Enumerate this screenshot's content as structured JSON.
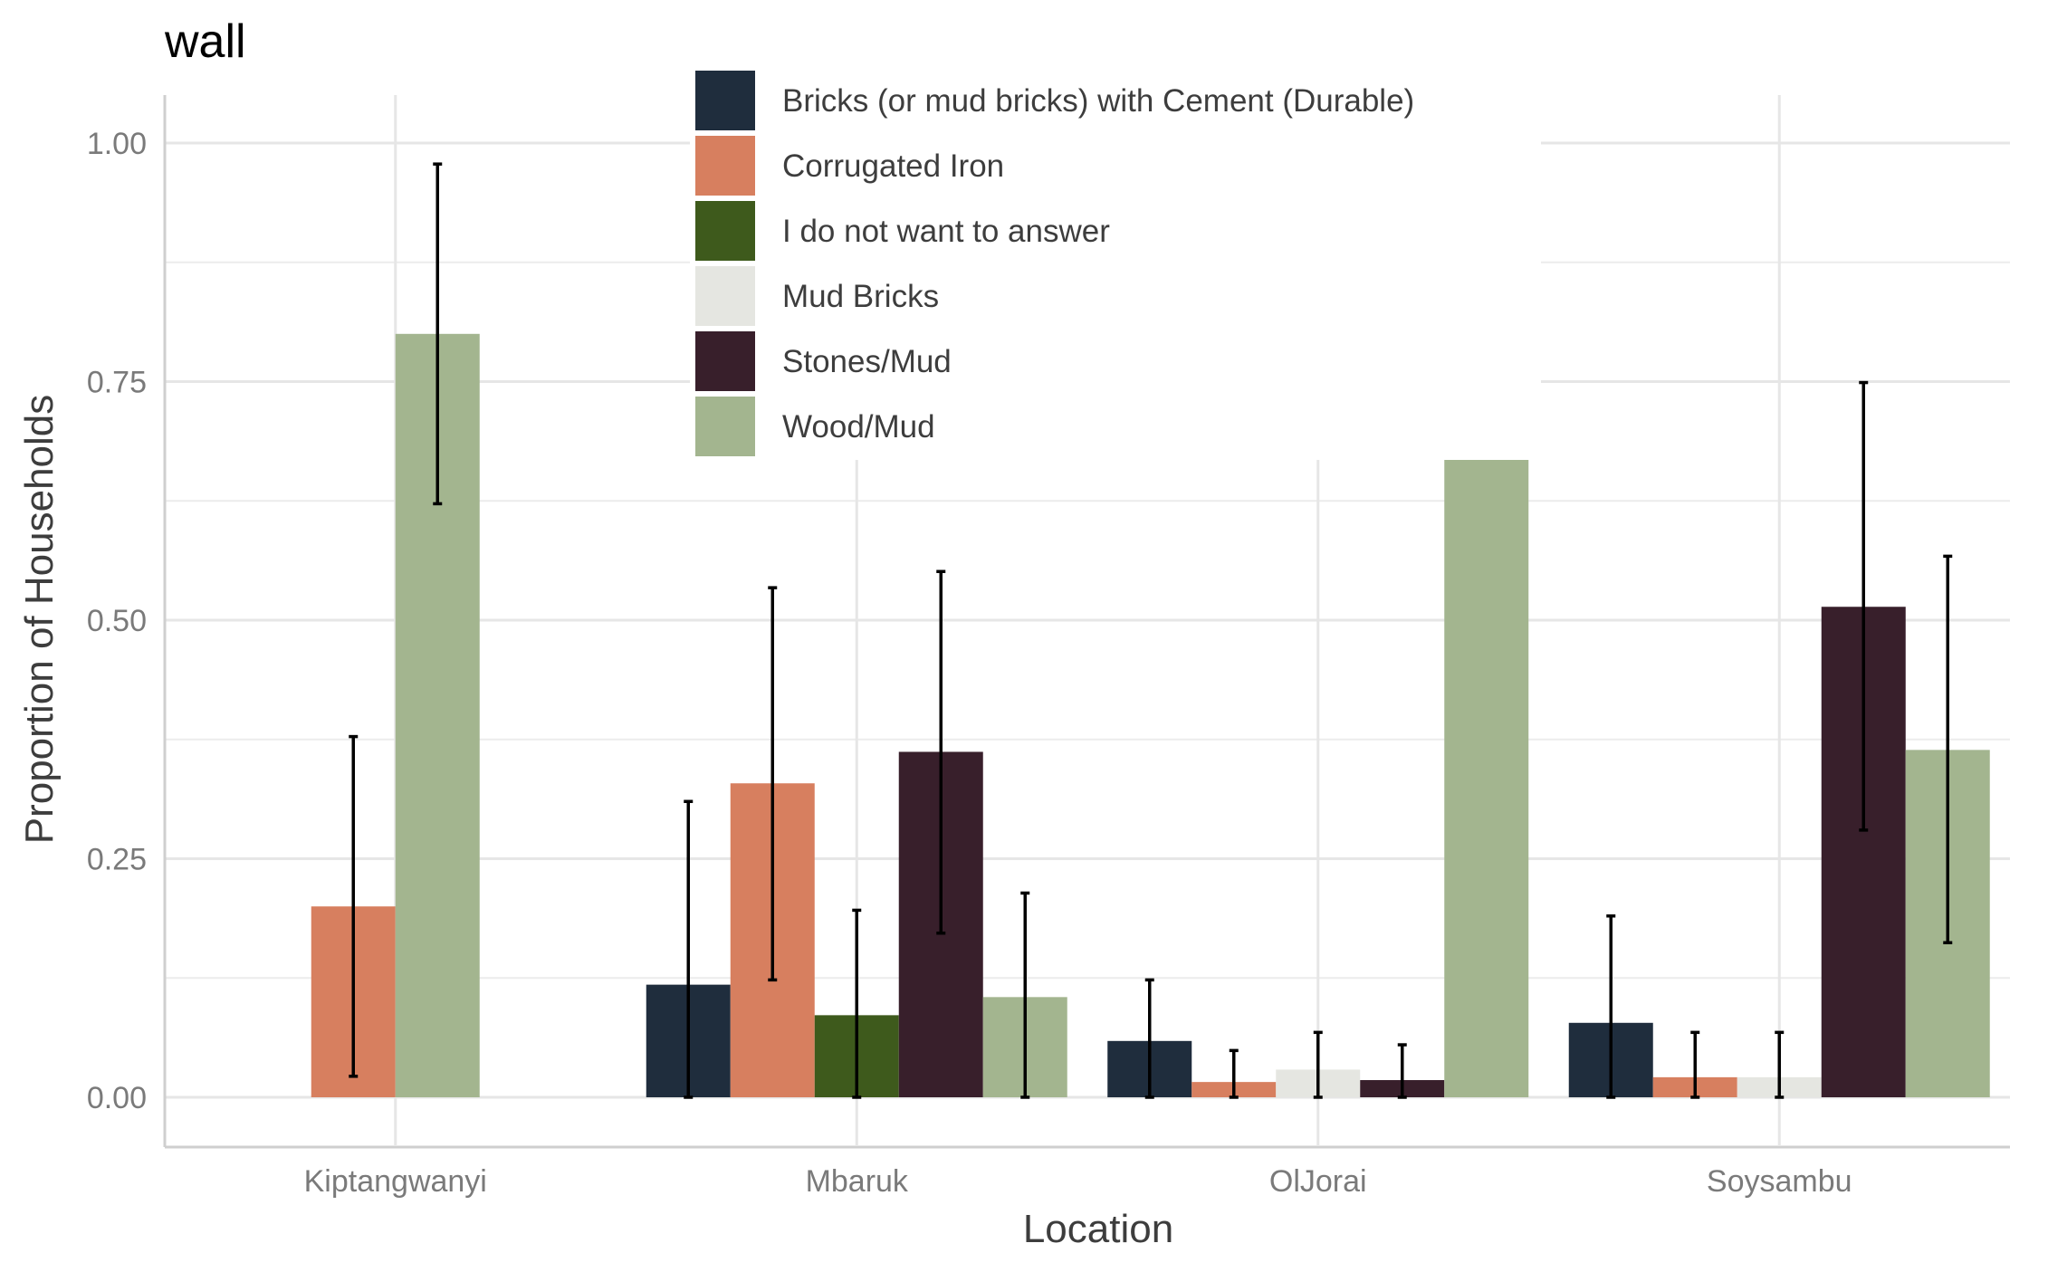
{
  "chart_data": {
    "type": "bar",
    "title": "wall",
    "xlabel": "Location",
    "ylabel": "Proportion of Households",
    "ylim": [
      -0.05,
      1.05
    ],
    "yticks": [
      "0.00",
      "0.25",
      "0.50",
      "0.75",
      "1.00"
    ],
    "categories": [
      "Kiptangwanyi",
      "Mbaruk",
      "OlJorai",
      "Soysambu"
    ],
    "legend_position": "top-center",
    "grid": true,
    "error_bars": true,
    "series": [
      {
        "name": "Bricks (or mud bricks) with Cement (Durable)",
        "color": "#1f2d3d",
        "values": [
          null,
          0.118,
          0.059,
          0.078
        ],
        "err_low": [
          null,
          0.0,
          0.0,
          0.0
        ],
        "err_high": [
          null,
          0.31,
          0.123,
          0.19
        ]
      },
      {
        "name": "Corrugated Iron",
        "color": "#d77f5f",
        "values": [
          0.2,
          0.329,
          0.016,
          0.021
        ],
        "err_low": [
          0.022,
          0.123,
          0.0,
          0.0
        ],
        "err_high": [
          0.378,
          0.534,
          0.049,
          0.068
        ]
      },
      {
        "name": "I do not want to answer",
        "color": "#3e5a1c",
        "values": [
          null,
          0.086,
          null,
          null
        ],
        "err_low": [
          null,
          0.0,
          null,
          null
        ],
        "err_high": [
          null,
          0.196,
          null,
          null
        ]
      },
      {
        "name": "Mud Bricks",
        "color": "#e5e6e1",
        "values": [
          null,
          null,
          0.029,
          0.021
        ],
        "err_low": [
          null,
          null,
          0.0,
          0.0
        ],
        "err_high": [
          null,
          null,
          0.068,
          0.068
        ]
      },
      {
        "name": "Stones/Mud",
        "color": "#381f2b",
        "values": [
          null,
          0.362,
          0.018,
          0.514
        ],
        "err_low": [
          null,
          0.172,
          0.0,
          0.28
        ],
        "err_high": [
          null,
          0.551,
          0.055,
          0.749
        ]
      },
      {
        "name": "Wood/Mud",
        "color": "#a3b58f",
        "values": [
          0.8,
          0.105,
          0.878,
          0.364
        ],
        "err_low": [
          0.622,
          0.0,
          0.789,
          0.162
        ],
        "err_high": [
          0.978,
          0.214,
          0.966,
          0.567
        ]
      }
    ],
    "slots": {
      "Kiptangwanyi": [
        "Corrugated Iron",
        "Wood/Mud"
      ],
      "Mbaruk": [
        "Bricks (or mud bricks) with Cement (Durable)",
        "Corrugated Iron",
        "I do not want to answer",
        "Stones/Mud",
        "Wood/Mud"
      ],
      "OlJorai": [
        "Bricks (or mud bricks) with Cement (Durable)",
        "Corrugated Iron",
        "Mud Bricks",
        "Stones/Mud",
        "Wood/Mud"
      ],
      "Soysambu": [
        "Bricks (or mud bricks) with Cement (Durable)",
        "Corrugated Iron",
        "Mud Bricks",
        "Stones/Mud",
        "Wood/Mud"
      ]
    }
  }
}
